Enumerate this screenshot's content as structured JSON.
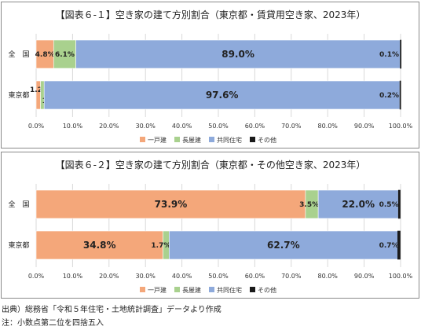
{
  "chart_data": [
    {
      "type": "bar",
      "orientation": "horizontal",
      "stacked": true,
      "title": "【図表６-１】空き家の建て方別割合（東京都・賃貸用空き家、2023年）",
      "categories": [
        "全　国",
        "東京都"
      ],
      "series": [
        {
          "name": "一戸建",
          "color": "#f4a77a",
          "values": [
            4.8,
            1.2
          ]
        },
        {
          "name": "長屋建",
          "color": "#a9d18e",
          "values": [
            6.1,
            1.0
          ]
        },
        {
          "name": "共同住宅",
          "color": "#8eaadb",
          "values": [
            89.0,
            97.6
          ]
        },
        {
          "name": "その他",
          "color": "#1a1a1a",
          "values": [
            0.1,
            0.2
          ]
        }
      ],
      "data_labels": [
        [
          "4.8%",
          "6.1%",
          "89.0%",
          "0.1%"
        ],
        [
          "1.2%",
          "1.0%",
          "97.6%",
          "0.2%"
        ]
      ],
      "x_ticks": [
        "0.0%",
        "10.0%",
        "20.0%",
        "30.0%",
        "40.0%",
        "50.0%",
        "60.0%",
        "70.0%",
        "80.0%",
        "90.0%",
        "100.0%"
      ],
      "xlim": [
        0,
        100
      ],
      "grid": true,
      "legend": "bottom"
    },
    {
      "type": "bar",
      "orientation": "horizontal",
      "stacked": true,
      "title": "【図表６-２】空き家の建て方別割合（東京都・その他空き家、2023年）",
      "categories": [
        "全　国",
        "東京都"
      ],
      "series": [
        {
          "name": "一戸建",
          "color": "#f4a77a",
          "values": [
            73.9,
            34.8
          ]
        },
        {
          "name": "長屋建",
          "color": "#a9d18e",
          "values": [
            3.5,
            1.7
          ]
        },
        {
          "name": "共同住宅",
          "color": "#8eaadb",
          "values": [
            22.0,
            62.7
          ]
        },
        {
          "name": "その他",
          "color": "#1a1a1a",
          "values": [
            0.5,
            0.7
          ]
        }
      ],
      "data_labels": [
        [
          "73.9%",
          "3.5%",
          "22.0%",
          "0.5%"
        ],
        [
          "34.8%",
          "1.7%",
          "62.7%",
          "0.7%"
        ]
      ],
      "x_ticks": [
        "0.0%",
        "10.0%",
        "20.0%",
        "30.0%",
        "40.0%",
        "50.0%",
        "60.0%",
        "70.0%",
        "80.0%",
        "90.0%",
        "100.0%"
      ],
      "xlim": [
        0,
        100
      ],
      "grid": true,
      "legend": "bottom"
    }
  ],
  "footer": {
    "source": "出典）総務省「令和５年住宅・土地統計調査」データより作成",
    "note": "注：小数点第二位を四捨五入"
  }
}
